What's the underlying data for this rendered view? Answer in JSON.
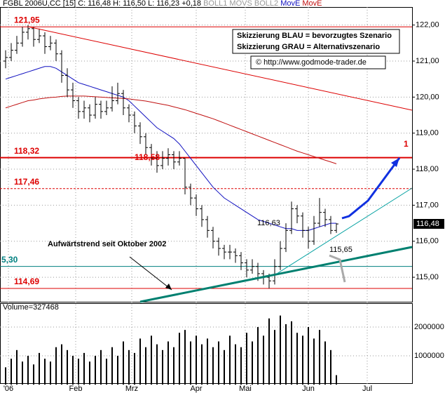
{
  "chart_data": {
    "type": "ohlc",
    "header": {
      "symbol": "FGBL 2006U,CC [15]",
      "quote": "C: 116,48 H: 116,50 L: 116,23 +0,18",
      "ind1": "BOLL1",
      "ind2": "MOVS",
      "ind3": "BOLL2",
      "ind4": "MovE",
      "ind5": "MovE"
    },
    "legend_lines": [
      "Skizzierung BLAU = bevorzugtes Szenario",
      "Skizzierung GRAU = Alternativszenario"
    ],
    "source": "© http://www.godmode-trader.de",
    "trend_label": "Aufwärtstrend seit Oktober 2002",
    "annotations": [
      "116,63",
      "115,65",
      "118,58",
      "1"
    ],
    "last_price": "116,48",
    "volume_label": "Volume=327468",
    "ohlc": [
      [
        121.0,
        121.3,
        120.8,
        121.1
      ],
      [
        121.1,
        121.5,
        121.0,
        121.3
      ],
      [
        121.3,
        121.7,
        121.2,
        121.5
      ],
      [
        121.5,
        121.95,
        121.4,
        121.8
      ],
      [
        121.8,
        122.0,
        121.6,
        121.9
      ],
      [
        121.9,
        121.95,
        121.4,
        121.6
      ],
      [
        121.6,
        121.9,
        121.5,
        121.7
      ],
      [
        121.7,
        121.8,
        121.2,
        121.4
      ],
      [
        121.4,
        121.7,
        121.3,
        121.5
      ],
      [
        121.5,
        121.6,
        121.0,
        121.2
      ],
      [
        121.2,
        121.3,
        120.4,
        120.6
      ],
      [
        120.6,
        120.8,
        120.0,
        120.2
      ],
      [
        120.2,
        120.4,
        119.7,
        119.9
      ],
      [
        119.9,
        120.0,
        119.4,
        119.6
      ],
      [
        119.6,
        119.9,
        119.4,
        119.7
      ],
      [
        119.7,
        119.8,
        119.3,
        119.5
      ],
      [
        119.5,
        120.0,
        119.4,
        119.8
      ],
      [
        119.8,
        119.9,
        119.4,
        119.6
      ],
      [
        119.6,
        119.9,
        119.5,
        119.7
      ],
      [
        119.7,
        120.3,
        119.6,
        119.9
      ],
      [
        119.9,
        120.4,
        119.8,
        120.1
      ],
      [
        120.1,
        120.2,
        119.5,
        119.7
      ],
      [
        119.7,
        119.8,
        119.3,
        119.5
      ],
      [
        119.5,
        119.6,
        119.0,
        119.2
      ],
      [
        119.2,
        119.3,
        118.7,
        118.9
      ],
      [
        118.9,
        119.0,
        118.4,
        118.6
      ],
      [
        118.6,
        118.7,
        118.1,
        118.3
      ],
      [
        118.3,
        118.5,
        117.9,
        118.1
      ],
      [
        118.1,
        118.5,
        118.0,
        118.3
      ],
      [
        118.3,
        118.58,
        118.1,
        118.4
      ],
      [
        118.4,
        118.5,
        118.0,
        118.2
      ],
      [
        118.2,
        118.5,
        118.1,
        118.3
      ],
      [
        118.3,
        118.3,
        117.3,
        117.5
      ],
      [
        117.5,
        117.6,
        117.0,
        117.2
      ],
      [
        117.2,
        117.3,
        116.7,
        116.9
      ],
      [
        116.9,
        117.0,
        116.4,
        116.6
      ],
      [
        116.6,
        116.7,
        116.1,
        116.3
      ],
      [
        116.3,
        116.4,
        115.8,
        116.0
      ],
      [
        116.0,
        116.1,
        115.6,
        115.8
      ],
      [
        115.8,
        115.9,
        115.5,
        115.7
      ],
      [
        115.7,
        115.9,
        115.5,
        115.7
      ],
      [
        115.7,
        115.8,
        115.4,
        115.6
      ],
      [
        115.6,
        115.7,
        115.2,
        115.4
      ],
      [
        115.4,
        115.5,
        115.0,
        115.2
      ],
      [
        115.2,
        115.5,
        115.1,
        115.3
      ],
      [
        115.3,
        115.4,
        114.9,
        115.1
      ],
      [
        115.1,
        115.2,
        114.8,
        115.0
      ],
      [
        115.0,
        115.1,
        114.69,
        114.9
      ],
      [
        114.9,
        115.5,
        114.8,
        115.3
      ],
      [
        115.3,
        116.0,
        115.2,
        115.8
      ],
      [
        115.8,
        116.5,
        115.7,
        116.3
      ],
      [
        116.3,
        117.1,
        116.2,
        116.9
      ],
      [
        116.9,
        117.0,
        116.5,
        116.7
      ],
      [
        116.7,
        116.8,
        116.1,
        116.3
      ],
      [
        116.3,
        116.4,
        115.8,
        116.0
      ],
      [
        116.0,
        116.7,
        115.9,
        116.5
      ],
      [
        116.5,
        117.2,
        116.4,
        116.8
      ],
      [
        116.8,
        116.9,
        116.4,
        116.6
      ],
      [
        116.6,
        116.7,
        116.2,
        116.3
      ],
      [
        116.3,
        116.5,
        116.23,
        116.48
      ]
    ],
    "series": [
      {
        "name": "MovE",
        "color": "#1010c0",
        "values": [
          120.5,
          120.55,
          120.6,
          120.65,
          120.7,
          120.75,
          120.8,
          120.85,
          120.85,
          120.8,
          120.7,
          120.6,
          120.5,
          120.4,
          120.35,
          120.3,
          120.25,
          120.2,
          120.15,
          120.1,
          120.05,
          120.0,
          119.9,
          119.75,
          119.6,
          119.45,
          119.3,
          119.15,
          119.05,
          118.95,
          118.85,
          118.7,
          118.5,
          118.3,
          118.1,
          117.9,
          117.7,
          117.5,
          117.35,
          117.2,
          117.1,
          117.0,
          116.9,
          116.8,
          116.7,
          116.6,
          116.55,
          116.5,
          116.45,
          116.4,
          116.35,
          116.35,
          116.3,
          116.3,
          116.3,
          116.35,
          116.4,
          116.45,
          116.5,
          116.5
        ]
      },
      {
        "name": "MovE",
        "color": "#c01010",
        "values": [
          119.7,
          119.75,
          119.8,
          119.85,
          119.9,
          119.92,
          119.95,
          119.97,
          119.99,
          120.0,
          120.02,
          120.03,
          120.03,
          120.03,
          120.03,
          120.02,
          120.01,
          120.0,
          119.99,
          119.98,
          119.97,
          119.96,
          119.95,
          119.93,
          119.91,
          119.89,
          119.86,
          119.83,
          119.8,
          119.77,
          119.73,
          119.69,
          119.65,
          119.6,
          119.55,
          119.5,
          119.45,
          119.4,
          119.34,
          119.28,
          119.22,
          119.16,
          119.1,
          119.04,
          118.98,
          118.92,
          118.86,
          118.8,
          118.74,
          118.68,
          118.62,
          118.56,
          118.5,
          118.45,
          118.4,
          118.35,
          118.3,
          118.25,
          118.2,
          118.15
        ]
      }
    ],
    "levels": [
      {
        "value": 121.95,
        "label": "121,95",
        "color": "#d00"
      },
      {
        "value": 118.32,
        "label": "118,32",
        "color": "#d00"
      },
      {
        "value": 117.46,
        "label": "117,46",
        "color": "#d00"
      },
      {
        "value": 115.3,
        "label": "5,30",
        "color": "#008080"
      },
      {
        "value": 114.69,
        "label": "114,69",
        "color": "#d00"
      }
    ],
    "volume": [
      600000,
      900000,
      1200000,
      800000,
      1000000,
      700000,
      1100000,
      900000,
      800000,
      1300000,
      1400000,
      1200000,
      1000000,
      900000,
      1100000,
      800000,
      1000000,
      1200000,
      900000,
      1300000,
      1000000,
      1500000,
      1200000,
      1100000,
      1600000,
      1300000,
      1700000,
      1400000,
      1200000,
      1500000,
      1300000,
      1800000,
      1900000,
      1500000,
      1700000,
      1400000,
      1600000,
      1300000,
      1500000,
      1200000,
      1700000,
      1400000,
      1300000,
      1800000,
      1500000,
      2000000,
      1700000,
      2300000,
      1900000,
      2400000,
      2100000,
      2200000,
      1800000,
      1700000,
      2000000,
      1600000,
      1900000,
      1500000,
      1200000,
      327468
    ],
    "xlim": [
      -1,
      72.5
    ],
    "xticks": [
      {
        "value": 0.5,
        "label": "'06"
      },
      {
        "value": 12.5,
        "label": "Feb"
      },
      {
        "value": 22.5,
        "label": "Mrz"
      },
      {
        "value": 34,
        "label": "Apr"
      },
      {
        "value": 42.75,
        "label": "Mai"
      },
      {
        "value": 54,
        "label": "Jun"
      },
      {
        "value": 64.5,
        "label": "Jul"
      }
    ],
    "ylim": [
      114.32,
      122.5
    ],
    "yticks": [
      {
        "value": 115,
        "label": "115,00"
      },
      {
        "value": 116,
        "label": "116,00"
      },
      {
        "value": 117,
        "label": "117,00"
      },
      {
        "value": 118,
        "label": "118,00"
      },
      {
        "value": 119,
        "label": "119,00"
      },
      {
        "value": 120,
        "label": "120,00"
      },
      {
        "value": 121,
        "label": "121,00"
      },
      {
        "value": 122,
        "label": "122,00"
      }
    ],
    "vlim": [
      0,
      2830000
    ],
    "vticks": [
      1000000,
      2000000
    ],
    "grid": true
  }
}
